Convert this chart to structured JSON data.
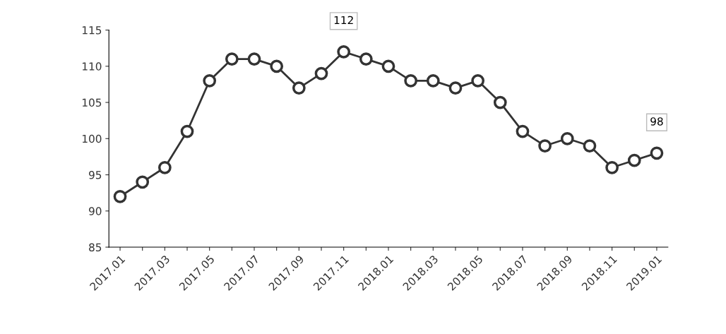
{
  "chart_data": {
    "type": "line",
    "categories": [
      "2017.01",
      null,
      "2017.03",
      null,
      "2017.05",
      null,
      "2017.07",
      null,
      "2017.09",
      null,
      "2017.11",
      null,
      "2018.01",
      null,
      "2018.03",
      null,
      "2018.05",
      null,
      "2018.07",
      null,
      "2018.09",
      null,
      "2018.11",
      null,
      "2019.01"
    ],
    "series": [
      {
        "color": "#333333",
        "values": [
          92,
          94,
          96,
          101,
          108,
          111,
          111,
          110,
          107,
          109,
          112,
          111,
          110,
          108,
          108,
          107,
          108,
          105,
          101,
          99,
          100,
          99,
          96,
          97,
          98
        ]
      }
    ],
    "ylim": [
      85,
      115
    ],
    "yticks": [
      85,
      90,
      95,
      100,
      105,
      110,
      115
    ],
    "annotations": [
      {
        "text": "112",
        "x": "2017.11",
        "y": 112
      },
      {
        "text": "98",
        "x": "2019.01",
        "y": 98
      }
    ],
    "marker": "circle",
    "line_style": "solid",
    "grid": false,
    "legend": false
  }
}
